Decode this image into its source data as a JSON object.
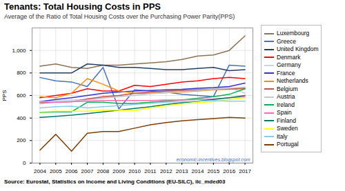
{
  "chart_data": {
    "type": "line",
    "title": "Tenants: Total Housing Costs in PPS",
    "subtitle": "Average of the Ratio of Total Housing Costs over the Purchasing Power Parity(PPS)",
    "y_label": "PPS",
    "source": "Source: Eurostat, Statistics on Income and Living Conditions (EU-SILC), ilc_mded03",
    "annotations": [
      "economic-incentives.blogspot.com"
    ],
    "x": [
      2004,
      2005,
      2006,
      2007,
      2008,
      2009,
      2010,
      2011,
      2012,
      2013,
      2014,
      2015,
      2016,
      2017
    ],
    "xlim": [
      2003.5,
      2017.5
    ],
    "xticks": [
      2004,
      2005,
      2006,
      2007,
      2008,
      2009,
      2010,
      2011,
      2012,
      2013,
      2014,
      2015,
      2016,
      2017
    ],
    "ylim": [
      0,
      1200
    ],
    "yticks": [
      0,
      200,
      400,
      600,
      800,
      {
        "value": 1000,
        "label": "1,000"
      }
    ],
    "grid": true,
    "legend": "right",
    "series": [
      {
        "name": "Luxembourg",
        "color": "#8B7355",
        "values": [
          860,
          880,
          850,
          840,
          870,
          870,
          880,
          890,
          900,
          920,
          950,
          960,
          1000,
          1130
        ]
      },
      {
        "name": "Greece",
        "color": "#4472C4",
        "values": [
          760,
          730,
          720,
          680,
          850,
          480,
          650,
          640,
          630,
          610,
          600,
          590,
          870,
          860
        ]
      },
      {
        "name": "United Kingdom",
        "color": "#243F60",
        "values": [
          800,
          800,
          800,
          880,
          870,
          850,
          850,
          840,
          830,
          830,
          840,
          850,
          820,
          830
        ]
      },
      {
        "name": "Denmark",
        "color": "#FF0000",
        "values": [
          580,
          600,
          620,
          660,
          640,
          640,
          690,
          680,
          700,
          720,
          730,
          750,
          760,
          750
        ]
      },
      {
        "name": "Germany",
        "color": "#BDD7EE",
        "values": [
          550,
          555,
          560,
          565,
          580,
          590,
          600,
          615,
          630,
          645,
          655,
          665,
          670,
          620
        ]
      },
      {
        "name": "France",
        "color": "#3333CC",
        "values": [
          545,
          565,
          580,
          600,
          620,
          630,
          640,
          645,
          650,
          655,
          665,
          670,
          680,
          710
        ]
      },
      {
        "name": "Netherlands",
        "color": "#FF8C00",
        "values": [
          590,
          580,
          620,
          750,
          700,
          640,
          620,
          620,
          625,
          630,
          640,
          650,
          655,
          660
        ]
      },
      {
        "name": "Belgium",
        "color": "#C0504D",
        "values": [
          540,
          540,
          545,
          570,
          590,
          600,
          620,
          630,
          640,
          645,
          650,
          655,
          660,
          665
        ]
      },
      {
        "name": "Austria",
        "color": "#C8C8C8",
        "values": [
          545,
          545,
          550,
          560,
          575,
          590,
          605,
          615,
          625,
          635,
          645,
          655,
          665,
          675
        ]
      },
      {
        "name": "Ireland",
        "color": "#00B050",
        "values": [
          450,
          455,
          455,
          540,
          540,
          530,
          530,
          540,
          550,
          560,
          575,
          590,
          610,
          660
        ]
      },
      {
        "name": "Spain",
        "color": "#FF69B4",
        "values": [
          530,
          540,
          545,
          550,
          555,
          555,
          555,
          555,
          560,
          560,
          565,
          570,
          580,
          590
        ]
      },
      {
        "name": "Finland",
        "color": "#00796B",
        "values": [
          405,
          415,
          425,
          440,
          455,
          470,
          485,
          500,
          520,
          535,
          550,
          565,
          580,
          600
        ]
      },
      {
        "name": "Sweden",
        "color": "#FFFF00",
        "values": [
          455,
          460,
          460,
          460,
          470,
          470,
          465,
          490,
          510,
          525,
          535,
          545,
          565,
          580
        ]
      },
      {
        "name": "Italy",
        "color": "#87CEEB",
        "values": [
          490,
          500,
          505,
          490,
          500,
          510,
          520,
          530,
          540,
          545,
          550,
          555,
          550,
          550
        ]
      },
      {
        "name": "Portugal",
        "color": "#7B3F00",
        "values": [
          115,
          255,
          105,
          265,
          280,
          280,
          310,
          340,
          360,
          375,
          385,
          395,
          405,
          400
        ]
      }
    ]
  }
}
